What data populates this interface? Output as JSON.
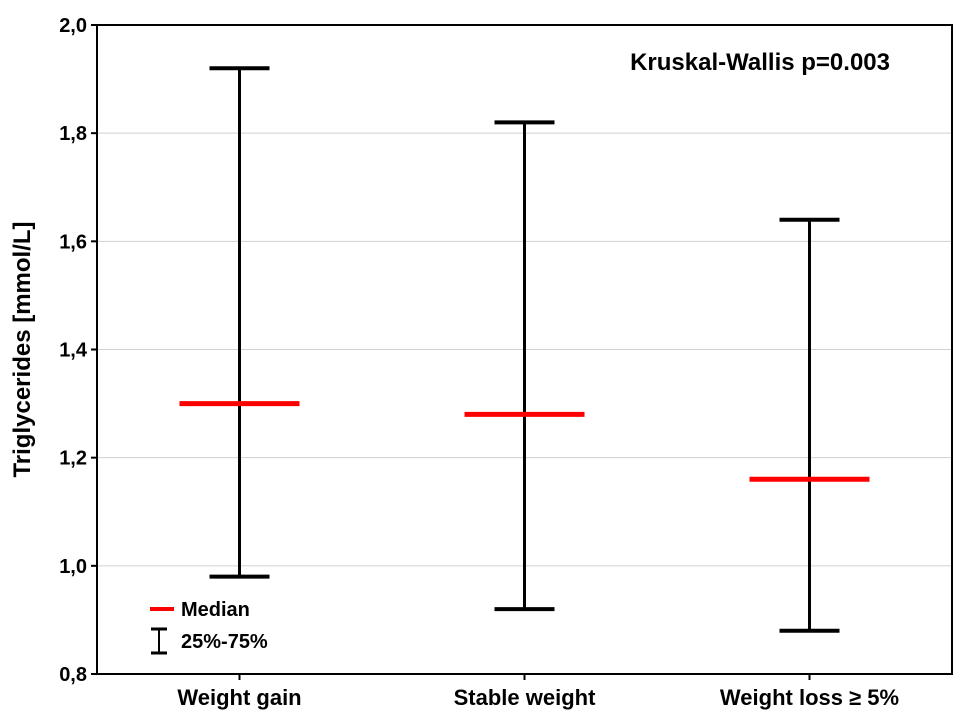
{
  "chart_data": {
    "type": "box-range",
    "title": "",
    "xlabel": "",
    "ylabel": "Triglycerides [mmol/L]",
    "ylim": [
      0.8,
      2.0
    ],
    "yticks": [
      "0,8",
      "1,0",
      "1,2",
      "1,4",
      "1,6",
      "1,8",
      "2,0"
    ],
    "ytick_values": [
      0.8,
      1.0,
      1.2,
      1.4,
      1.6,
      1.8,
      2.0
    ],
    "grid": true,
    "categories": [
      "Weight gain",
      "Stable weight",
      "Weight loss ≥ 5%"
    ],
    "median": [
      1.3,
      1.28,
      1.16
    ],
    "q25": [
      0.98,
      0.92,
      0.88
    ],
    "q75": [
      1.92,
      1.82,
      1.64
    ],
    "annotation": "Kruskal-Wallis p=0.003",
    "legend": {
      "position": "bottom-left",
      "median_label": "Median",
      "range_label": "25%-75%"
    },
    "colors": {
      "median": "#ff0000",
      "range": "#000000",
      "grid": "#d0d0d0"
    }
  }
}
